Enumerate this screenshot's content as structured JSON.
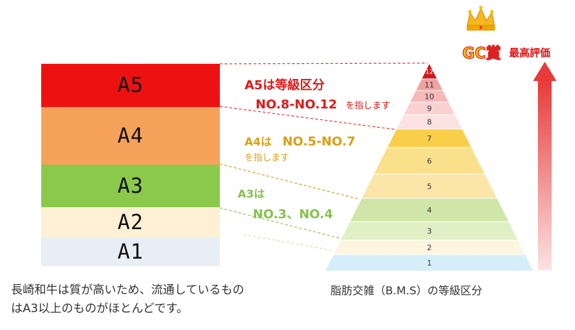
{
  "grades": [
    {
      "label": "A5",
      "color": "#ee1111"
    },
    {
      "label": "A4",
      "color": "#f6a25b"
    },
    {
      "label": "A3",
      "color": "#8bc94a"
    },
    {
      "label": "A2",
      "color": "#fdf0d4"
    },
    {
      "label": "A1",
      "color": "#e9eef6"
    }
  ],
  "annotations": {
    "a5_line1": "A5は等級区分",
    "a5_line2": "NO.8-NO.12",
    "a5_line2_suffix": "を指します",
    "a4_prefix": "A4は",
    "a4_range": "NO.5-NO.7",
    "a4_suffix": "を指します",
    "a3_line1": "A3は",
    "a3_line2": "NO.3、NO.4"
  },
  "pyramid": {
    "levels": [
      "12",
      "11",
      "10",
      "9",
      "8",
      "7",
      "6",
      "5",
      "4",
      "3",
      "2",
      "1"
    ],
    "caption": "脂肪交雑（B.M.S）の等級区分"
  },
  "award": {
    "label": "GC賞",
    "top_eval": "最高評価"
  },
  "caption_left": {
    "line1": "長崎和牛は質が高いため、流通しているもの",
    "line2": "はA3以上のものがほとんどです。"
  }
}
